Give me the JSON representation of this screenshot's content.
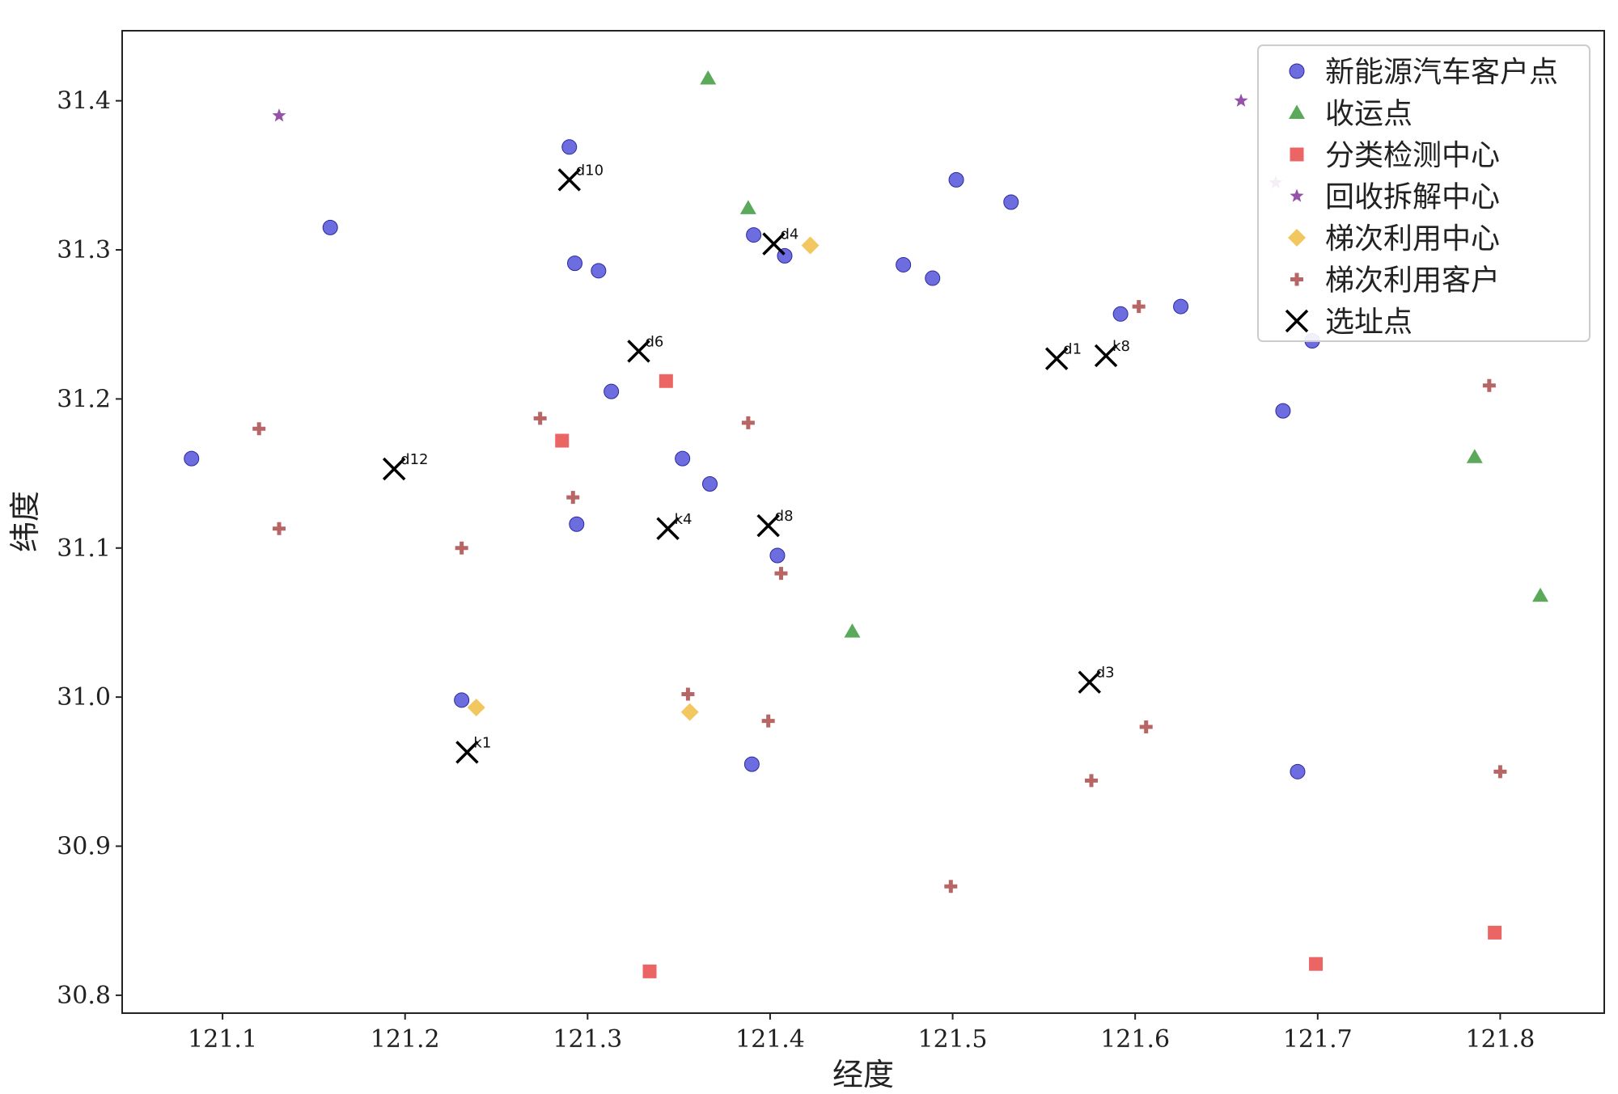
{
  "chart_data": {
    "type": "scatter",
    "xlabel": "经度",
    "ylabel": "纬度",
    "xlim": [
      121.045,
      121.857
    ],
    "ylim": [
      30.788,
      31.447
    ],
    "xticks": [
      "121.1",
      "121.2",
      "121.3",
      "121.4",
      "121.5",
      "121.6",
      "121.7",
      "121.8"
    ],
    "yticks": [
      "30.8",
      "30.9",
      "31.0",
      "31.1",
      "31.2",
      "31.3",
      "31.4"
    ],
    "grid": false,
    "legend_position": "top-right",
    "series": [
      {
        "name": "新能源汽车客户点",
        "marker": "circle",
        "color": "#4848d8",
        "points": [
          [
            121.29,
            31.369
          ],
          [
            121.159,
            31.315
          ],
          [
            121.293,
            31.291
          ],
          [
            121.306,
            31.286
          ],
          [
            121.391,
            31.31
          ],
          [
            121.408,
            31.296
          ],
          [
            121.502,
            31.347
          ],
          [
            121.532,
            31.332
          ],
          [
            121.473,
            31.29
          ],
          [
            121.489,
            31.281
          ],
          [
            121.592,
            31.257
          ],
          [
            121.625,
            31.262
          ],
          [
            121.313,
            31.205
          ],
          [
            121.352,
            31.16
          ],
          [
            121.367,
            31.143
          ],
          [
            121.294,
            31.116
          ],
          [
            121.404,
            31.095
          ],
          [
            121.083,
            31.16
          ],
          [
            121.231,
            30.998
          ],
          [
            121.39,
            30.955
          ],
          [
            121.681,
            31.192
          ],
          [
            121.689,
            30.95
          ],
          [
            121.697,
            31.239
          ]
        ]
      },
      {
        "name": "收运点",
        "marker": "triangle",
        "color": "#3e9a3e",
        "points": [
          [
            121.366,
            31.415
          ],
          [
            121.388,
            31.328
          ],
          [
            121.445,
            31.044
          ],
          [
            121.786,
            31.161
          ],
          [
            121.822,
            31.068
          ]
        ]
      },
      {
        "name": "分类检测中心",
        "marker": "square",
        "color": "#e84a4a",
        "points": [
          [
            121.343,
            31.212
          ],
          [
            121.286,
            31.172
          ],
          [
            121.334,
            30.816
          ],
          [
            121.699,
            30.821
          ],
          [
            121.797,
            30.842
          ]
        ]
      },
      {
        "name": "回收拆解中心",
        "marker": "star",
        "color": "#8a3f9e",
        "points": [
          [
            121.131,
            31.39
          ],
          [
            121.658,
            31.4
          ],
          [
            121.677,
            31.345
          ]
        ]
      },
      {
        "name": "梯次利用中心",
        "marker": "diamond",
        "color": "#f2c14e",
        "points": [
          [
            121.422,
            31.303
          ],
          [
            121.239,
            30.993
          ],
          [
            121.356,
            30.99
          ]
        ]
      },
      {
        "name": "梯次利用客户",
        "marker": "plus",
        "color": "#b05454",
        "points": [
          [
            121.12,
            31.18
          ],
          [
            121.131,
            31.113
          ],
          [
            121.274,
            31.187
          ],
          [
            121.292,
            31.134
          ],
          [
            121.388,
            31.184
          ],
          [
            121.231,
            31.1
          ],
          [
            121.406,
            31.083
          ],
          [
            121.355,
            31.002
          ],
          [
            121.399,
            30.984
          ],
          [
            121.602,
            31.262
          ],
          [
            121.794,
            31.209
          ],
          [
            121.606,
            30.98
          ],
          [
            121.576,
            30.944
          ],
          [
            121.499,
            30.873
          ],
          [
            121.8,
            30.95
          ]
        ]
      },
      {
        "name": "选址点",
        "marker": "x",
        "color": "#000000",
        "points": [
          [
            121.29,
            31.347
          ],
          [
            121.402,
            31.304
          ],
          [
            121.328,
            31.232
          ],
          [
            121.194,
            31.153
          ],
          [
            121.344,
            31.113
          ],
          [
            121.399,
            31.115
          ],
          [
            121.557,
            31.227
          ],
          [
            121.584,
            31.229
          ],
          [
            121.575,
            31.01
          ],
          [
            121.234,
            30.963
          ]
        ],
        "labels": [
          "d10",
          "d4",
          "d6",
          "d12",
          "k4",
          "d8",
          "d1",
          "k8",
          "d3",
          "k1"
        ]
      }
    ]
  }
}
